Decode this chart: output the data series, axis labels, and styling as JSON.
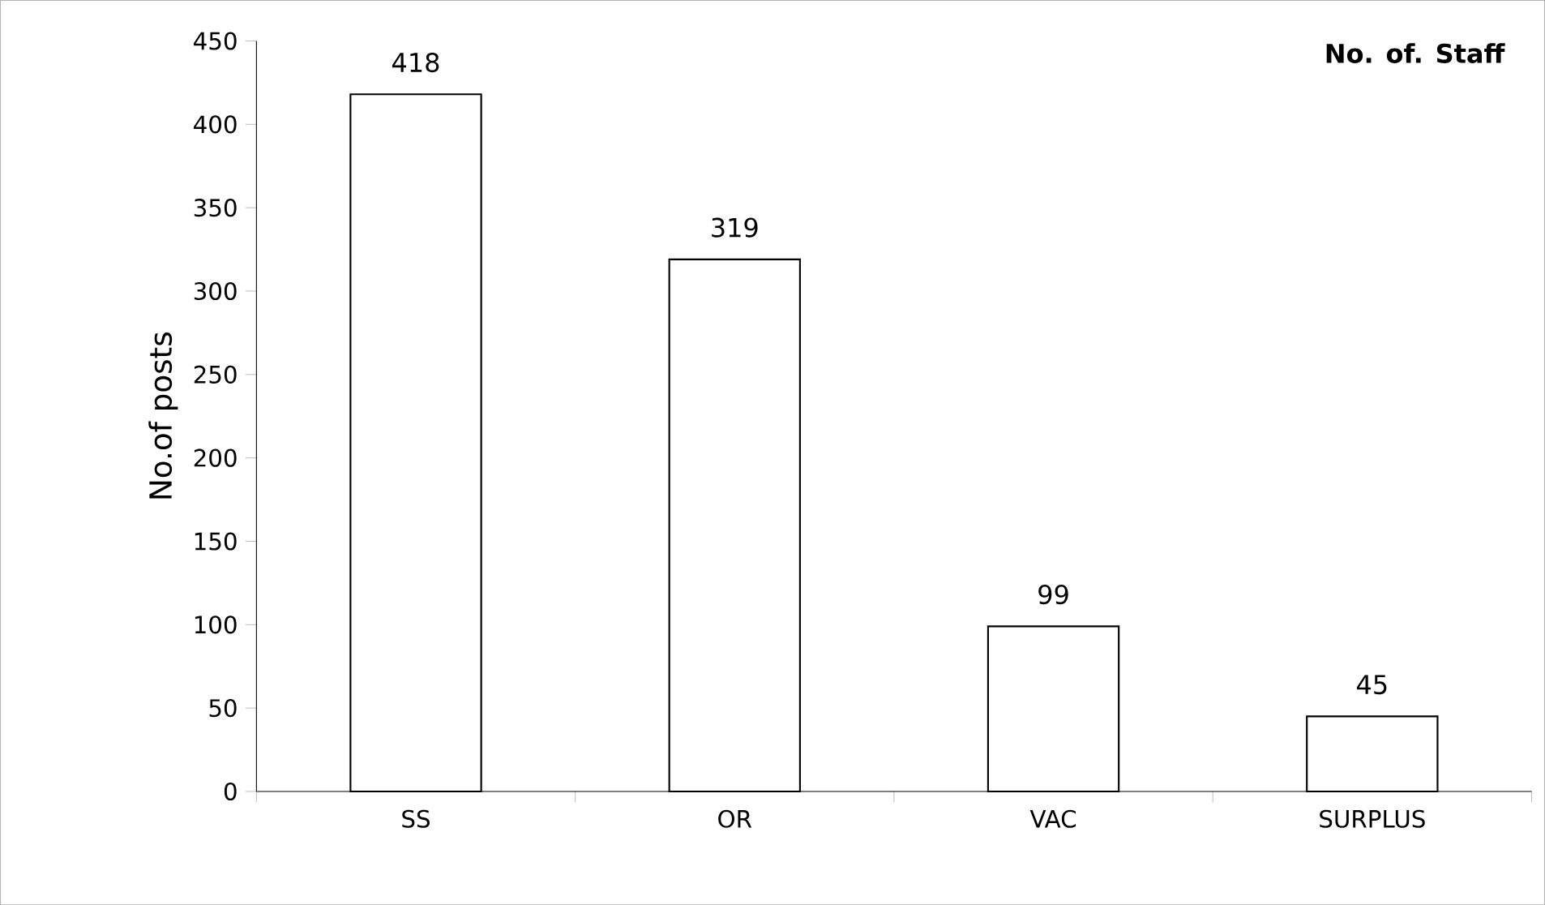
{
  "chart_data": {
    "type": "bar",
    "title": "No. of. Staff",
    "ylabel": "No.of posts",
    "categories": [
      "SS",
      "OR",
      "VAC",
      "SURPLUS"
    ],
    "values": [
      418,
      319,
      99,
      45
    ],
    "color": "#ffffff",
    "ylim": [
      0,
      450
    ],
    "yticks": [
      0,
      50,
      100,
      150,
      200,
      250,
      300,
      350,
      400,
      450
    ],
    "data_labels": true,
    "grid": false
  }
}
